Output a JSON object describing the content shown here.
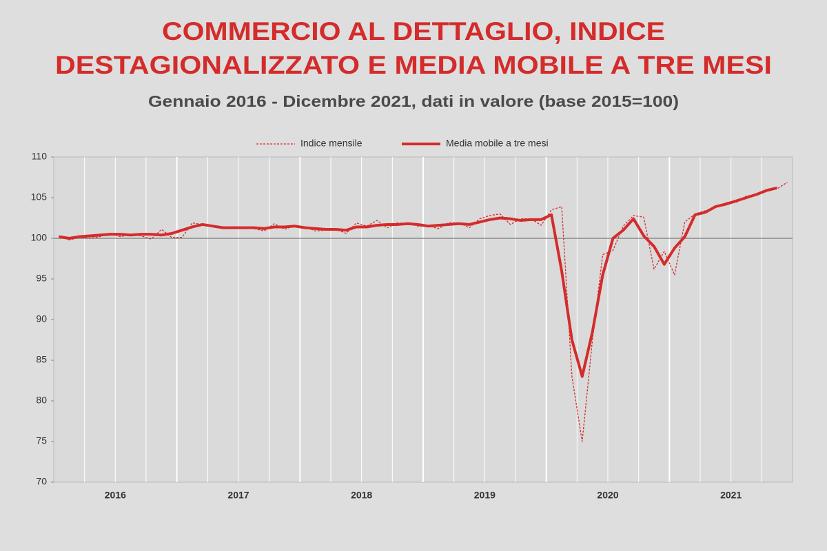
{
  "chart_data": {
    "type": "line",
    "title": [
      "COMMERCIO AL DETTAGLIO, INDICE",
      "DESTAGIONALIZZATO E MEDIA MOBILE A TRE MESI"
    ],
    "subtitle": "Gennaio 2016 - Dicembre 2021, dati in valore (base 2015=100)",
    "categories": [
      null,
      null,
      null,
      null,
      null,
      null,
      "2016",
      null,
      null,
      null,
      null,
      null,
      null,
      null,
      null,
      null,
      null,
      null,
      "2017",
      null,
      null,
      null,
      null,
      null,
      null,
      null,
      null,
      null,
      null,
      null,
      "2018",
      null,
      null,
      null,
      null,
      null,
      null,
      null,
      null,
      null,
      null,
      null,
      "2019",
      null,
      null,
      null,
      null,
      null,
      null,
      null,
      null,
      null,
      null,
      null,
      "2020",
      null,
      null,
      null,
      null,
      null,
      null,
      null,
      null,
      null,
      null,
      null,
      "2021",
      null,
      null,
      null,
      null,
      null
    ],
    "series": [
      {
        "name": "Indice mensile",
        "color": "#d42b2b",
        "style": "dashed",
        "values": [
          100.3,
          99.8,
          100.1,
          100.0,
          100.2,
          100.6,
          100.2,
          100.5,
          100.3,
          99.9,
          101.1,
          100.1,
          100.1,
          101.9,
          101.7,
          101.4,
          101.2,
          101.3,
          101.3,
          101.2,
          100.9,
          101.8,
          101.1,
          101.6,
          101.4,
          100.9,
          101.0,
          101.1,
          100.6,
          101.9,
          101.5,
          102.2,
          101.3,
          101.9,
          101.8,
          101.5,
          101.5,
          101.2,
          101.9,
          101.9,
          101.3,
          102.4,
          102.8,
          103.0,
          101.7,
          102.4,
          102.4,
          101.6,
          103.5,
          103.9,
          83.0,
          75.0,
          87.5,
          98.0,
          98.5,
          101.5,
          102.8,
          102.6,
          96.2,
          98.4,
          95.5,
          102.0,
          103.0,
          103.4,
          103.8,
          104.4,
          104.4,
          105.2,
          105.4,
          105.9,
          106.1,
          106.9
        ]
      },
      {
        "name": "Media mobile a tre mesi",
        "color": "#d42b2b",
        "style": "solid",
        "values": [
          100.2,
          100.0,
          100.2,
          100.3,
          100.4,
          100.5,
          100.5,
          100.4,
          100.5,
          100.5,
          100.4,
          100.6,
          101.0,
          101.4,
          101.7,
          101.5,
          101.3,
          101.3,
          101.3,
          101.3,
          101.2,
          101.4,
          101.4,
          101.5,
          101.3,
          101.2,
          101.1,
          101.1,
          101.0,
          101.4,
          101.4,
          101.6,
          101.7,
          101.7,
          101.8,
          101.7,
          101.5,
          101.6,
          101.7,
          101.8,
          101.7,
          102.0,
          102.3,
          102.5,
          102.4,
          102.2,
          102.3,
          102.3,
          102.9,
          96.0,
          87.5,
          83.0,
          88.5,
          95.5,
          100.0,
          101.0,
          102.4,
          100.3,
          99.0,
          96.8,
          98.8,
          100.2,
          102.9,
          103.2,
          103.9,
          104.2,
          104.6,
          105.0,
          105.4,
          105.9,
          106.2,
          null
        ]
      }
    ],
    "ylim": [
      70,
      110
    ],
    "yticks": [
      70,
      75,
      80,
      85,
      90,
      95,
      100,
      105,
      110
    ],
    "reference_line": 100,
    "legend": "top"
  }
}
